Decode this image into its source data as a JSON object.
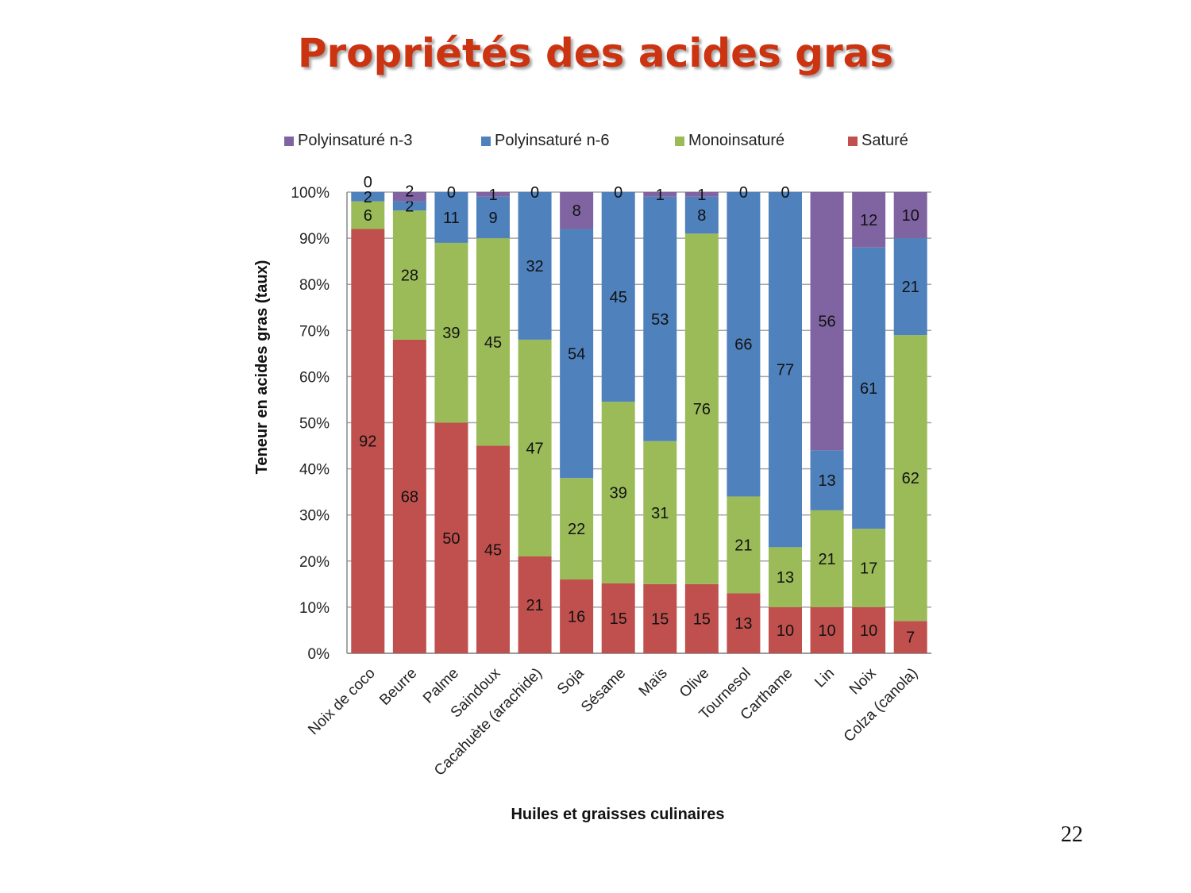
{
  "slide": {
    "title": "Propriétés des acides gras",
    "page_number": "22"
  },
  "chart_data": {
    "type": "bar",
    "stacked": true,
    "percent": true,
    "title": "Propriétés des acides gras",
    "xlabel": "Huiles et graisses culinaires",
    "ylabel": "Teneur en acides gras (taux)",
    "ylim": [
      0,
      100
    ],
    "yticks": [
      "0%",
      "10%",
      "20%",
      "30%",
      "40%",
      "50%",
      "60%",
      "70%",
      "80%",
      "90%",
      "100%"
    ],
    "legend_position": "top",
    "categories": [
      "Noix de coco",
      "Beurre",
      "Palme",
      "Saindoux",
      "Cacahuète (arachide)",
      "Soja",
      "Sésame",
      "Maïs",
      "Olive",
      "Tournesol",
      "Carthame",
      "Lin",
      "Noix",
      "Colza (canola)"
    ],
    "series": [
      {
        "name": "Saturé",
        "color": "#c0504d",
        "values": [
          92,
          68,
          50,
          45,
          21,
          16,
          15,
          15,
          15,
          13,
          10,
          10,
          10,
          7
        ]
      },
      {
        "name": "Monoinsaturé",
        "color": "#9bbb59",
        "values": [
          6,
          28,
          39,
          45,
          47,
          22,
          39,
          31,
          76,
          21,
          13,
          21,
          17,
          62
        ]
      },
      {
        "name": "Polyinsaturé n-6",
        "color": "#4f81bd",
        "values": [
          2,
          2,
          11,
          9,
          32,
          54,
          45,
          53,
          8,
          66,
          77,
          13,
          61,
          21
        ]
      },
      {
        "name": "Polyinsaturé n-3",
        "color": "#8064a2",
        "values": [
          0,
          2,
          0,
          1,
          0,
          8,
          0,
          1,
          1,
          0,
          0,
          56,
          12,
          10
        ]
      }
    ],
    "legend_order": [
      "Polyinsaturé n-3",
      "Polyinsaturé n-6",
      "Monoinsaturé",
      "Saturé"
    ]
  }
}
